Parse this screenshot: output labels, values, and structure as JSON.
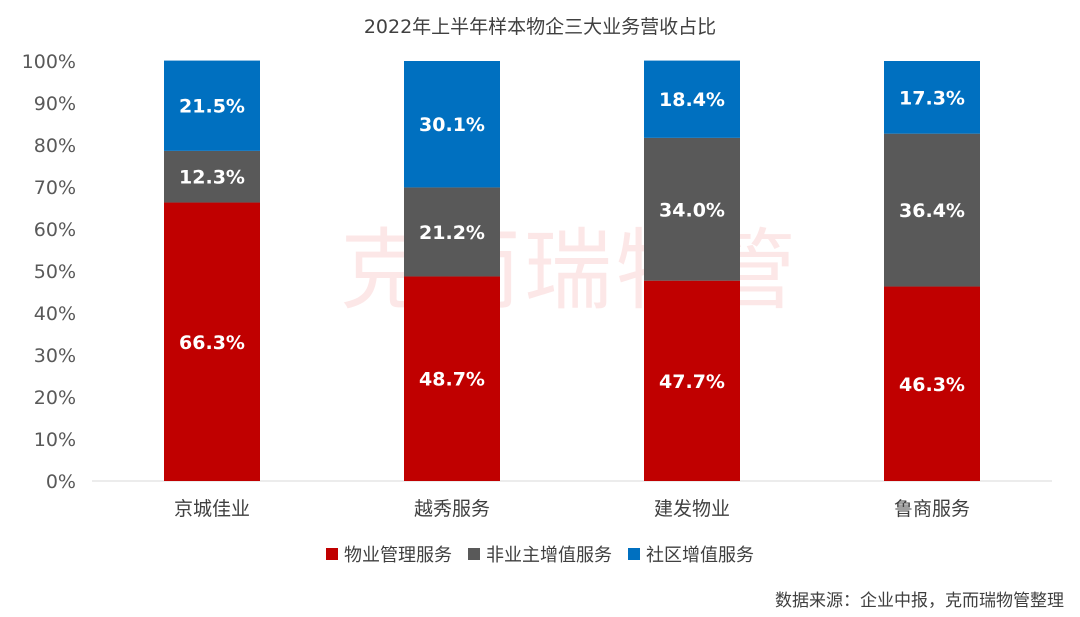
{
  "chart_data": {
    "type": "bar",
    "stacked": true,
    "title": "2022年上半年样本物企三大业务营收占比",
    "categories": [
      "京城佳业",
      "越秀服务",
      "建发物业",
      "鲁商服务"
    ],
    "y_ticks": [
      "0%",
      "10%",
      "20%",
      "30%",
      "40%",
      "50%",
      "60%",
      "70%",
      "80%",
      "90%",
      "100%"
    ],
    "ylim": [
      0,
      100
    ],
    "grid": false,
    "legend_position": "bottom",
    "series": [
      {
        "name": "物业管理服务",
        "color": "#C00000",
        "values": [
          66.3,
          48.7,
          47.7,
          46.3
        ],
        "labels": [
          "66.3%",
          "48.7%",
          "47.7%",
          "46.3%"
        ]
      },
      {
        "name": "非业主增值服务",
        "color": "#595959",
        "values": [
          12.3,
          21.2,
          34.0,
          36.4
        ],
        "labels": [
          "12.3%",
          "21.2%",
          "34.0%",
          "36.4%"
        ]
      },
      {
        "name": "社区增值服务",
        "color": "#0070C0",
        "values": [
          21.5,
          30.1,
          18.4,
          17.3
        ],
        "labels": [
          "21.5%",
          "30.1%",
          "18.4%",
          "17.3%"
        ]
      }
    ]
  },
  "source_note": "数据来源：企业中报，克而瑞物管整理",
  "watermark": "克而瑞物管"
}
